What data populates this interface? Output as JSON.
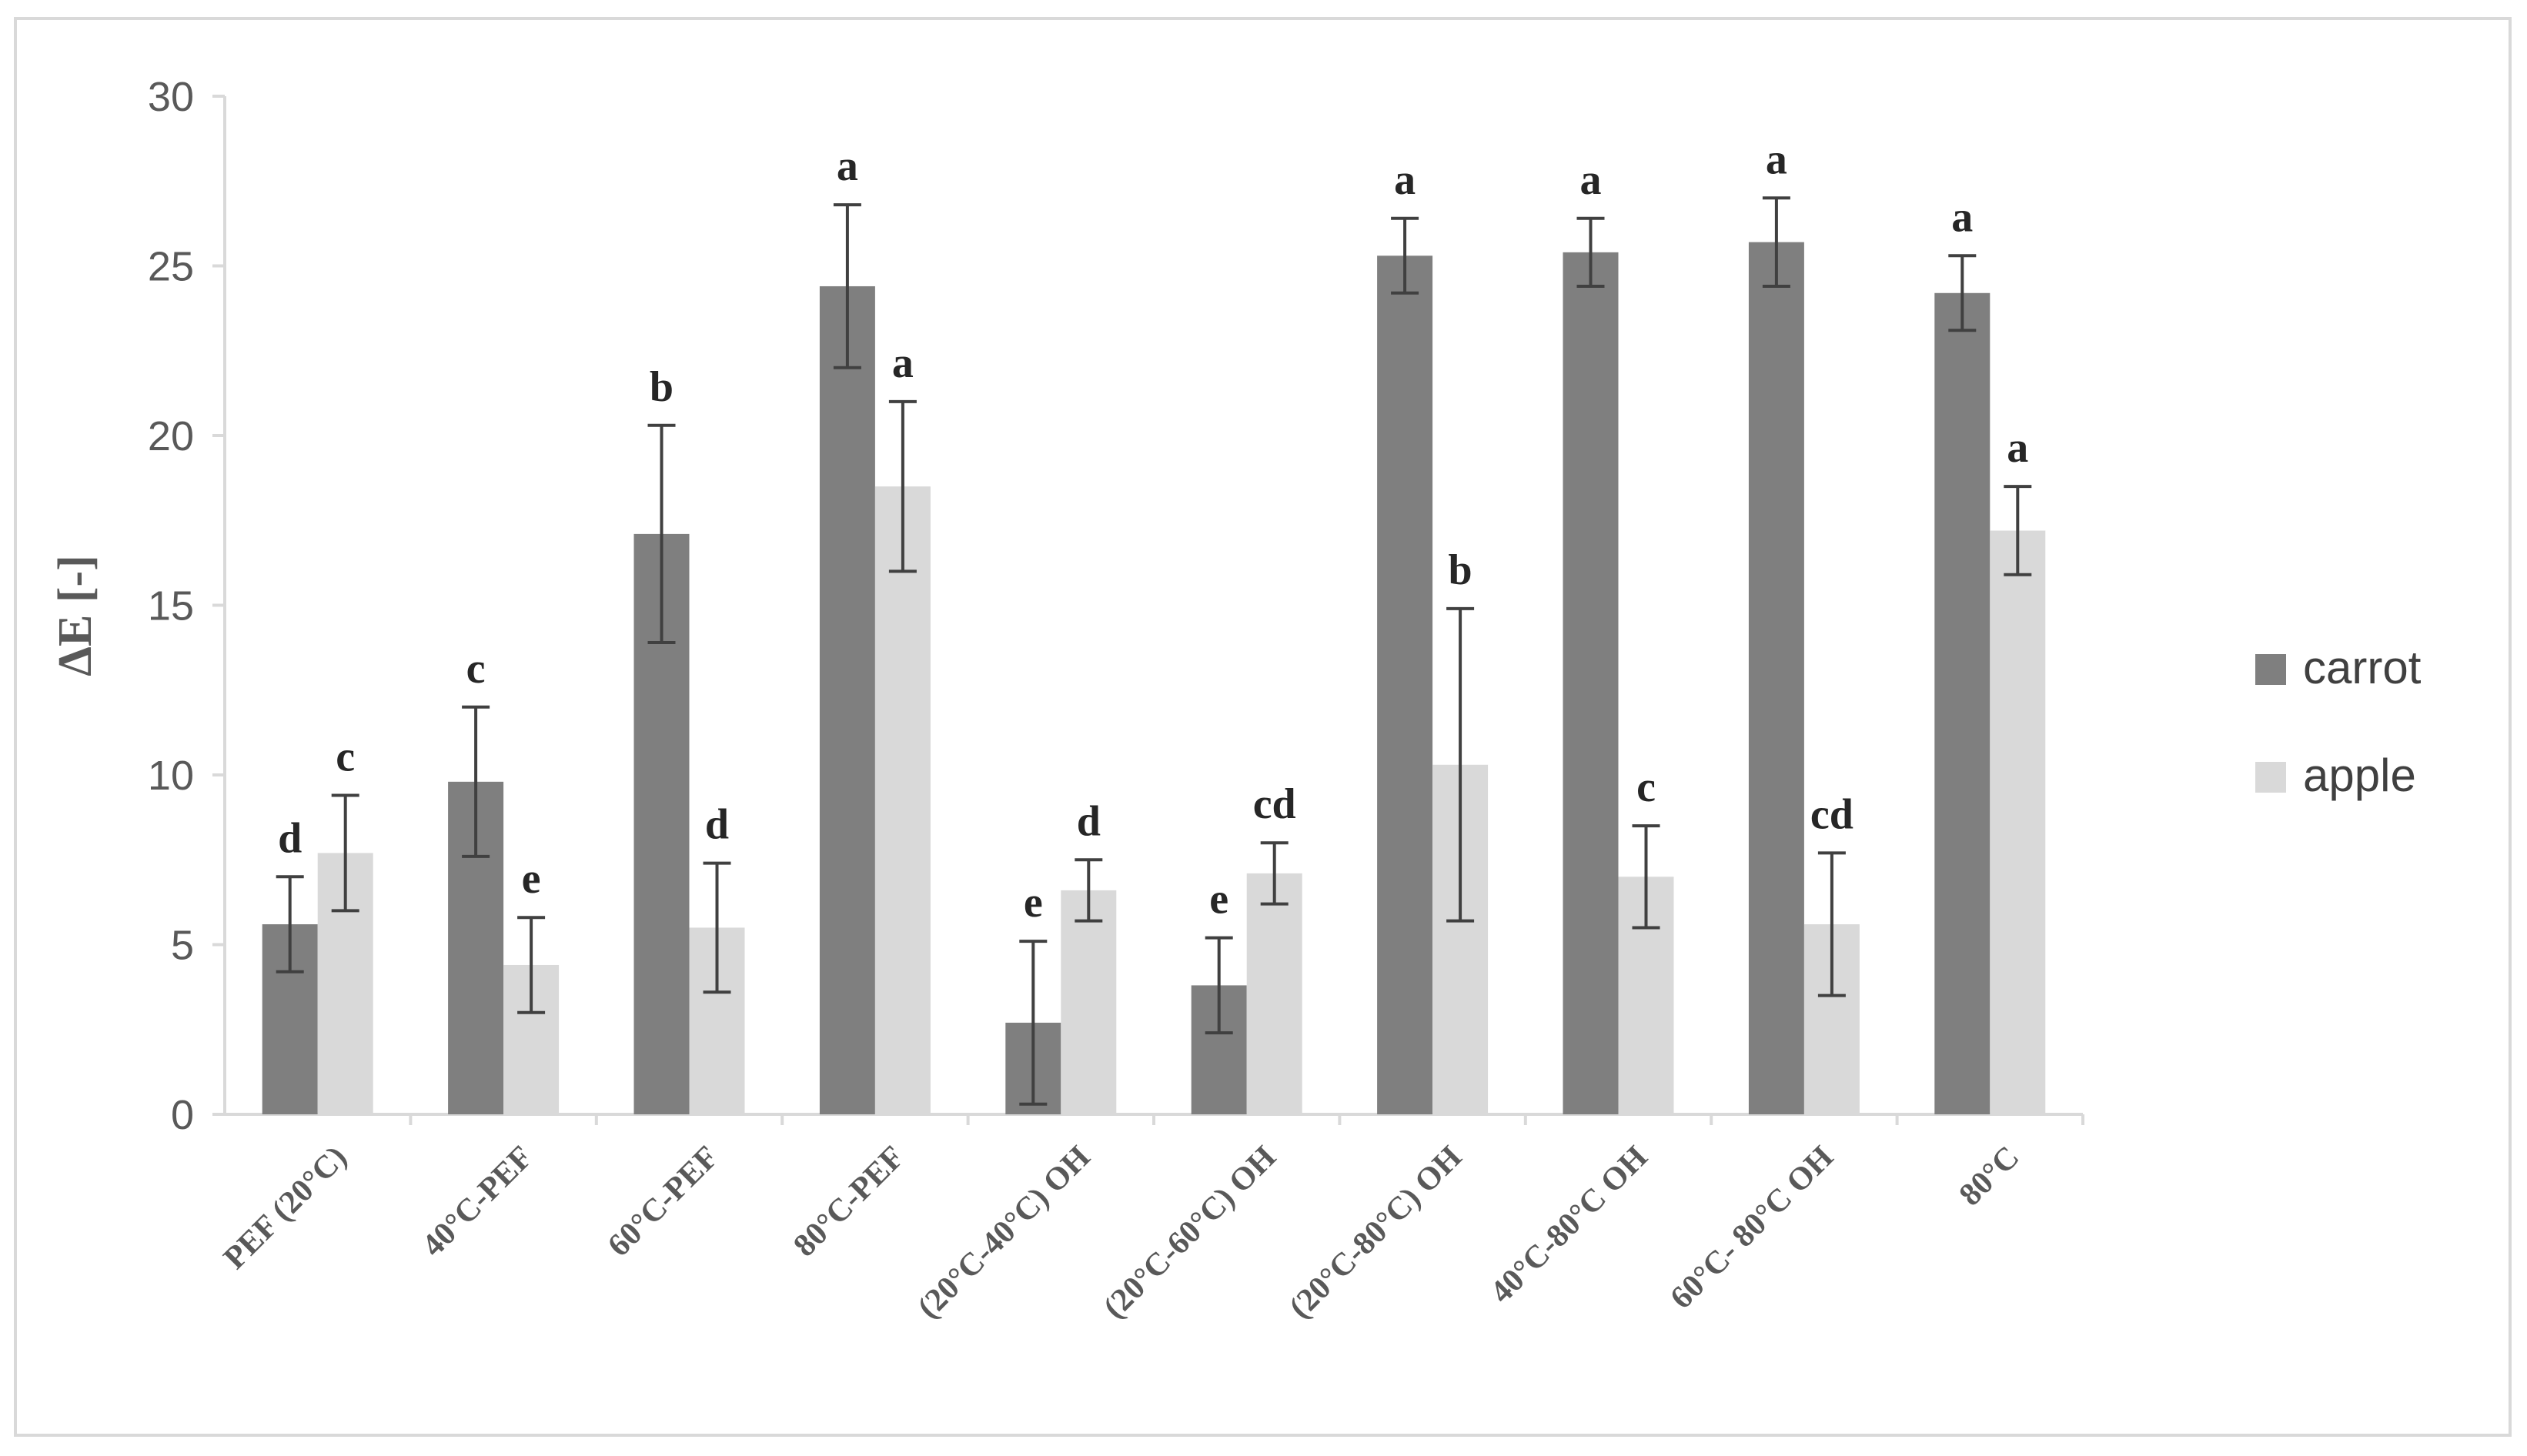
{
  "chart_data": {
    "type": "bar",
    "title": "",
    "xlabel": "",
    "ylabel": "ΔE [-]",
    "ylim": [
      0,
      30
    ],
    "yticks": [
      0,
      5,
      10,
      15,
      20,
      25,
      30
    ],
    "grid": false,
    "legend_position": "right",
    "categories": [
      "PEF (20°C)",
      "40°C-PEF",
      "60°C-PEF",
      "80°C-PEF",
      "(20°C-40°C) OH",
      "(20°C-60°C) OH",
      "(20°C-80°C) OH",
      "40°C-80°C OH",
      "60°C- 80°C OH",
      "80°C"
    ],
    "series": [
      {
        "name": "carrot",
        "color": "#7f7f7f",
        "values": [
          5.6,
          9.8,
          17.1,
          24.4,
          2.7,
          3.8,
          25.3,
          25.4,
          25.7,
          24.2
        ],
        "errors": [
          1.4,
          2.2,
          3.2,
          2.4,
          2.4,
          1.4,
          1.1,
          1.0,
          1.3,
          1.1
        ],
        "labels": [
          "d",
          "c",
          "b",
          "a",
          "e",
          "e",
          "a",
          "a",
          "a",
          "a"
        ]
      },
      {
        "name": "apple",
        "color": "#d9d9d9",
        "values": [
          7.7,
          4.4,
          5.5,
          18.5,
          6.6,
          7.1,
          10.3,
          7.0,
          5.6,
          17.2
        ],
        "errors": [
          1.7,
          1.4,
          1.9,
          2.5,
          0.9,
          0.9,
          4.6,
          1.5,
          2.1,
          1.3
        ],
        "labels": [
          "c",
          "e",
          "d",
          "a",
          "d",
          "cd",
          "b",
          "c",
          "cd",
          "a"
        ]
      }
    ]
  }
}
